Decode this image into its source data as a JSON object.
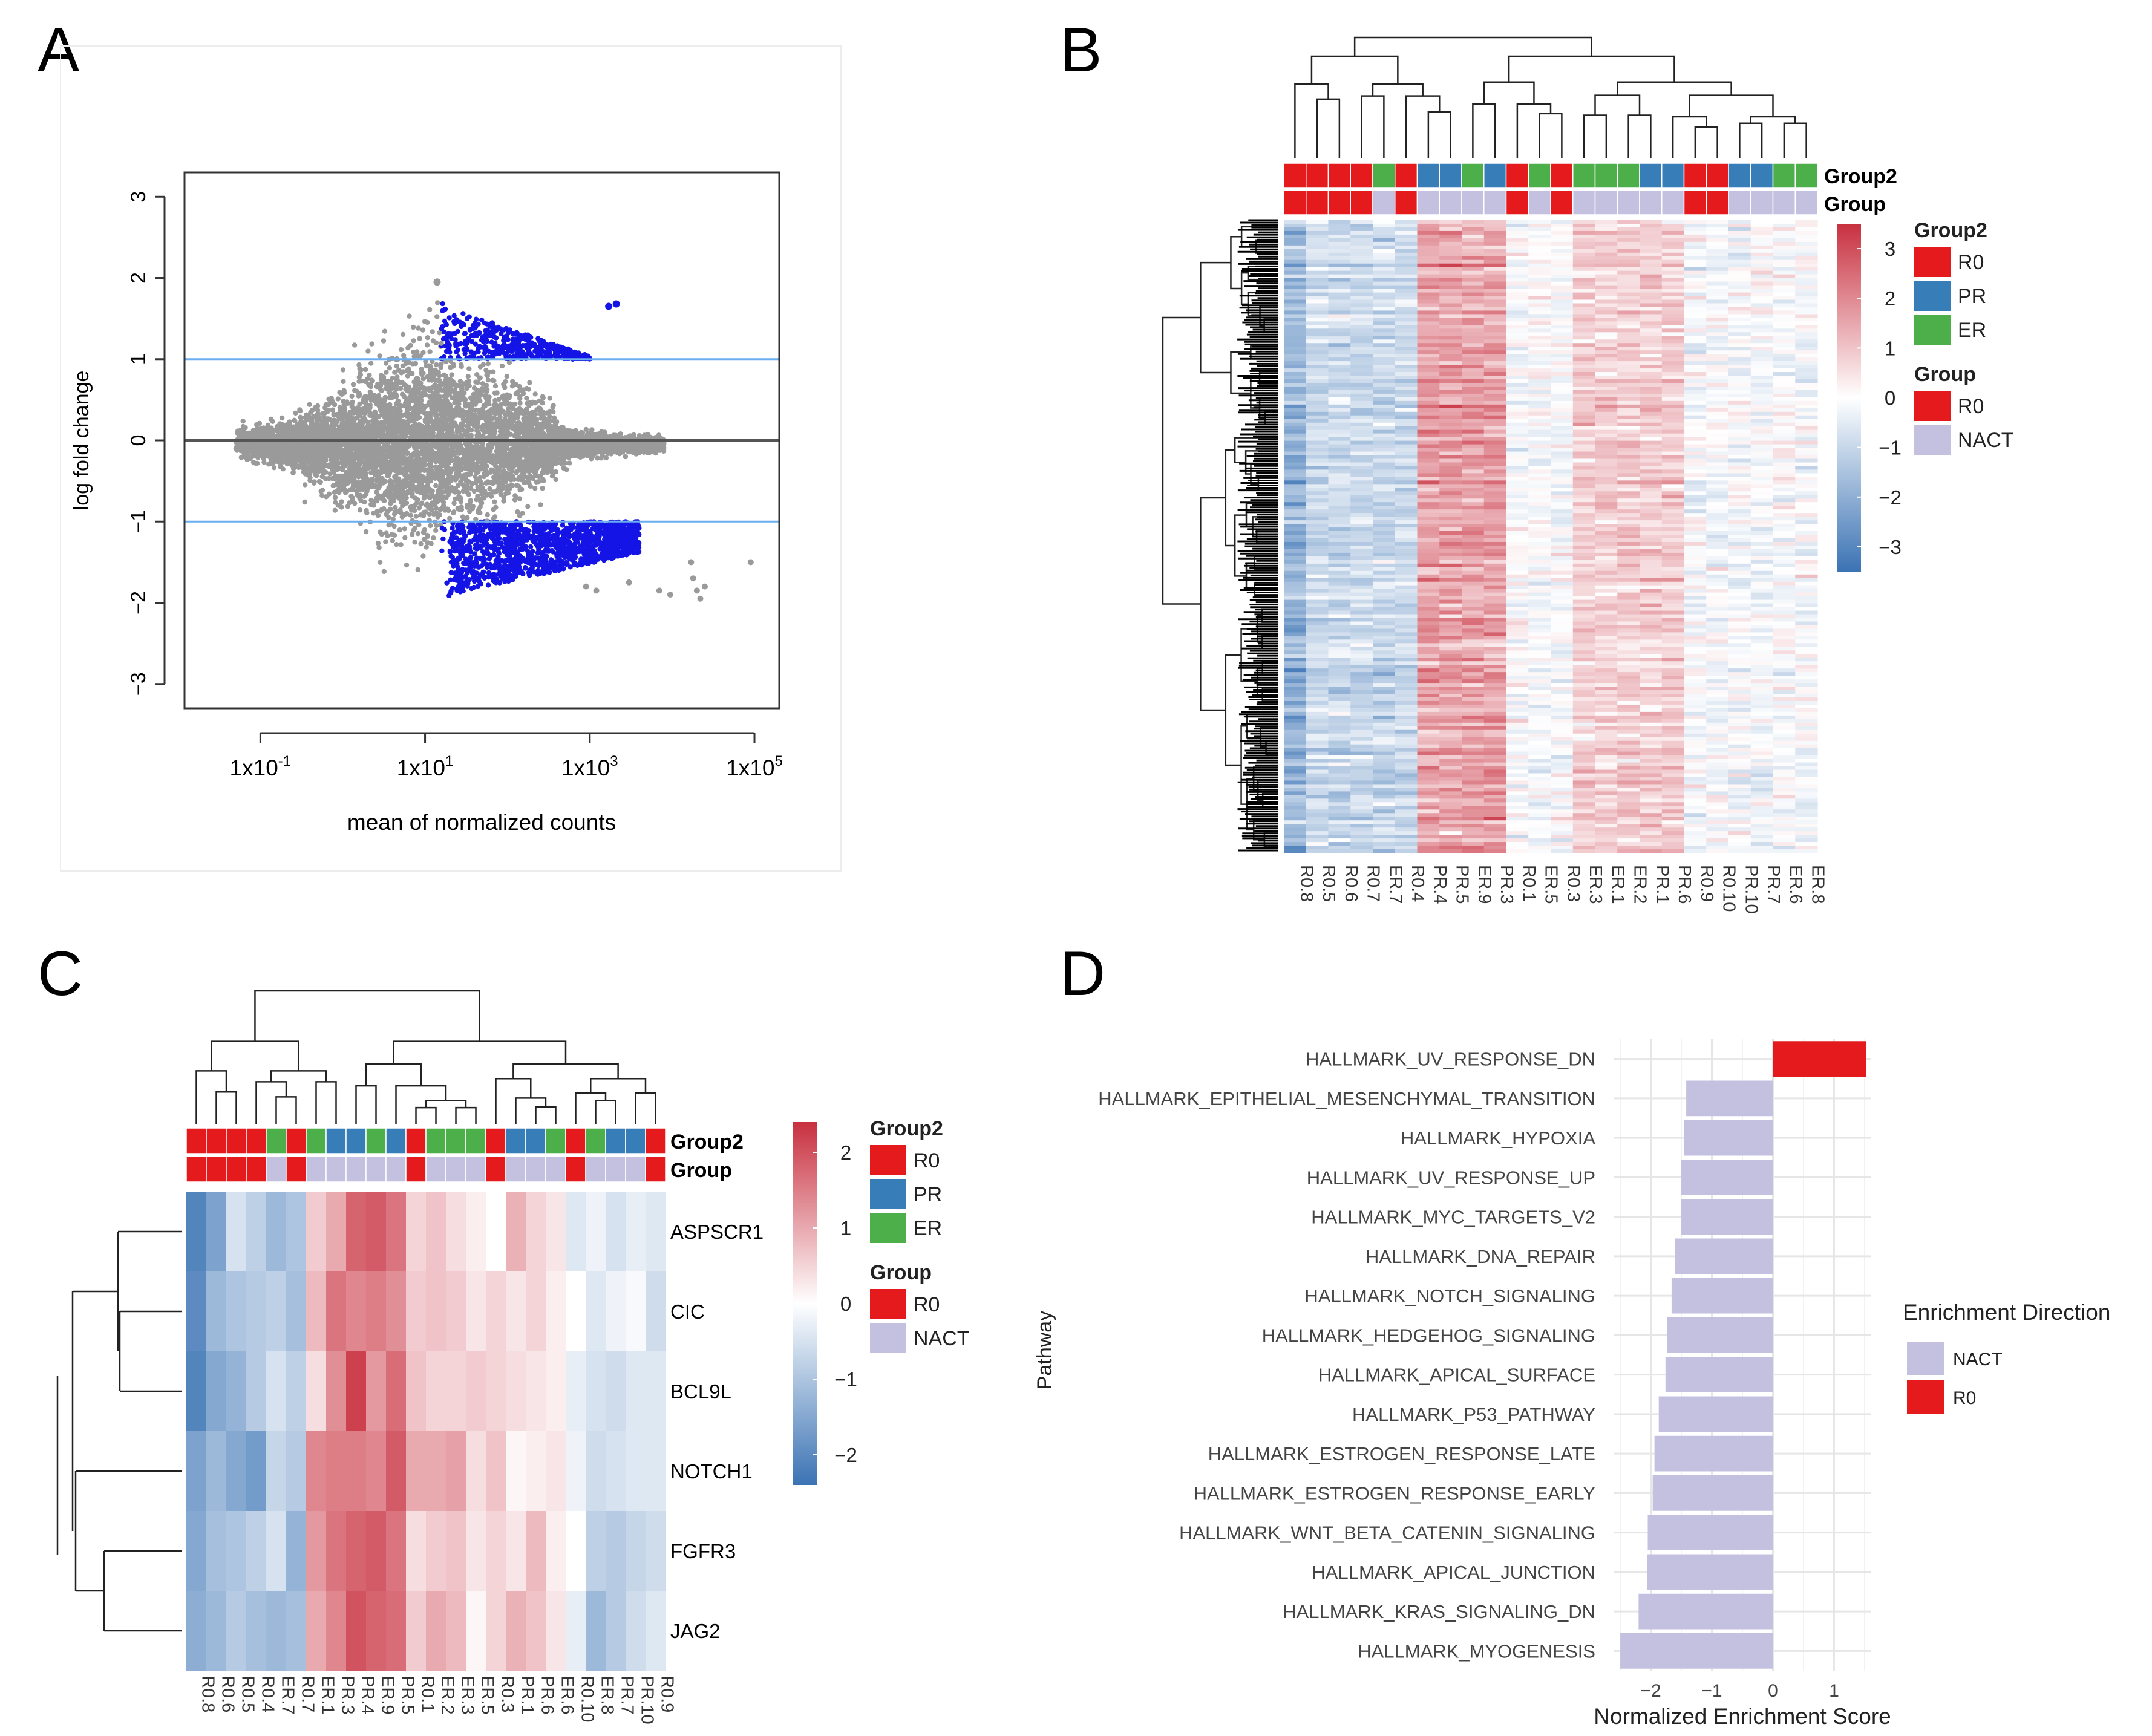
{
  "chart_data": [
    {
      "panel": "A",
      "type": "scatter",
      "subtype": "MA plot",
      "xlabel": "mean of normalized counts",
      "ylabel": "log fold change",
      "xscale": "log10",
      "xlim": [
        0.012,
        200000
      ],
      "ylim": [
        -3.3,
        3.3
      ],
      "x_ticks": [
        {
          "value": 0.1,
          "label": "1x10-1",
          "base": "1x10",
          "exp": "-1"
        },
        {
          "value": 10,
          "label": "1x101",
          "base": "1x10",
          "exp": "1"
        },
        {
          "value": 1000,
          "label": "1x103",
          "base": "1x10",
          "exp": "3"
        },
        {
          "value": 100000,
          "label": "1x105",
          "base": "1x10",
          "exp": "5"
        }
      ],
      "y_ticks": [
        -3,
        -2,
        -1,
        0,
        1,
        2,
        3
      ],
      "hlines": [
        {
          "y": 1,
          "color": "#6aaef0"
        },
        {
          "y": -1,
          "color": "#6aaef0"
        },
        {
          "y": 0,
          "color": "#555555"
        }
      ],
      "colors": {
        "non_significant": "#9a9a9a",
        "significant": "#1414e6"
      },
      "highlighted_points": [
        {
          "x": 1700,
          "y": 1.65
        },
        {
          "x": 2100,
          "y": 1.68
        },
        {
          "x": 14,
          "y": 1.95
        }
      ],
      "outlier_points": [
        {
          "x": 7000,
          "y": -1.85
        },
        {
          "x": 9500,
          "y": -1.9
        },
        {
          "x": 18000,
          "y": -1.7
        },
        {
          "x": 20000,
          "y": -1.85
        },
        {
          "x": 22000,
          "y": -1.95
        },
        {
          "x": 25000,
          "y": -1.8
        },
        {
          "x": 17000,
          "y": -1.5
        },
        {
          "x": 90000,
          "y": -1.5
        },
        {
          "x": 3000,
          "y": -1.75
        },
        {
          "x": 1200,
          "y": -1.85
        },
        {
          "x": 900,
          "y": -1.8
        }
      ]
    },
    {
      "panel": "B",
      "type": "heatmap",
      "columns": [
        "R0.8",
        "R0.5",
        "R0.6",
        "R0.7",
        "ER.7",
        "R0.4",
        "PR.4",
        "PR.5",
        "ER.9",
        "PR.3",
        "R0.1",
        "ER.5",
        "R0.3",
        "ER.3",
        "ER.1",
        "ER.2",
        "PR.1",
        "PR.6",
        "R0.9",
        "R0.10",
        "PR.10",
        "PR.7",
        "ER.6",
        "ER.8"
      ],
      "annotation_rows": [
        "Group2",
        "Group"
      ],
      "legend": {
        "scale_ticks": [
          3,
          2,
          1,
          0,
          -1,
          -2,
          -3
        ],
        "groups": [
          {
            "title": "Group2",
            "entries": [
              {
                "label": "R0",
                "color": "#e41a1c"
              },
              {
                "label": "PR",
                "color": "#377eb8"
              },
              {
                "label": "ER",
                "color": "#4daf4a"
              }
            ]
          },
          {
            "title": "Group",
            "entries": [
              {
                "label": "R0",
                "color": "#e41a1c"
              },
              {
                "label": "NACT",
                "color": "#c4c0e0"
              }
            ]
          }
        ]
      },
      "scale": {
        "min": -3.5,
        "max": 3.5,
        "low": "#3b73b4",
        "mid": "#ffffff",
        "high": "#c8303f"
      }
    },
    {
      "panel": "C",
      "type": "heatmap",
      "columns": [
        "R0.8",
        "R0.6",
        "R0.5",
        "R0.4",
        "ER.7",
        "R0.7",
        "ER.1",
        "PR.3",
        "PR.4",
        "ER.9",
        "PR.5",
        "R0.1",
        "ER.2",
        "ER.3",
        "ER.5",
        "R0.3",
        "PR.1",
        "PR.6",
        "ER.6",
        "R0.10",
        "ER.8",
        "PR.7",
        "PR.10",
        "R0.9"
      ],
      "rows": [
        "ASPSCR1",
        "CIC",
        "BCL9L",
        "NOTCH1",
        "FGFR3",
        "JAG2"
      ],
      "annotation_rows": [
        "Group2",
        "Group"
      ],
      "legend": {
        "scale_ticks": [
          2,
          1,
          0,
          -1,
          -2
        ],
        "groups": [
          {
            "title": "Group2",
            "entries": [
              {
                "label": "R0",
                "color": "#e41a1c"
              },
              {
                "label": "PR",
                "color": "#377eb8"
              },
              {
                "label": "ER",
                "color": "#4daf4a"
              }
            ]
          },
          {
            "title": "Group",
            "entries": [
              {
                "label": "R0",
                "color": "#e41a1c"
              },
              {
                "label": "NACT",
                "color": "#c4c0e0"
              }
            ]
          }
        ]
      },
      "scale": {
        "min": -2.4,
        "max": 2.4,
        "low": "#3b73b4",
        "mid": "#ffffff",
        "high": "#c8303f"
      },
      "values": [
        [
          -2.1,
          -1.6,
          -0.5,
          -0.8,
          -1.2,
          -1.0,
          0.6,
          1.0,
          1.8,
          1.9,
          1.6,
          0.5,
          0.7,
          0.4,
          0.2,
          0.0,
          0.9,
          0.5,
          0.3,
          -0.4,
          -0.2,
          -0.5,
          -0.3,
          -0.4
        ],
        [
          -2.0,
          -1.2,
          -1.0,
          -0.9,
          -0.8,
          -1.1,
          0.8,
          1.6,
          1.4,
          1.5,
          1.3,
          0.6,
          0.7,
          0.6,
          0.3,
          0.5,
          0.3,
          0.5,
          0.2,
          0.0,
          -0.4,
          -0.2,
          -0.1,
          -0.6
        ],
        [
          -2.1,
          -1.5,
          -1.3,
          -0.9,
          -0.5,
          -0.8,
          0.4,
          1.3,
          2.2,
          1.2,
          1.7,
          0.7,
          0.5,
          0.5,
          0.6,
          0.5,
          0.4,
          0.3,
          0.2,
          -0.3,
          -0.5,
          -0.6,
          -0.4,
          -0.4
        ],
        [
          -1.6,
          -1.2,
          -1.5,
          -1.7,
          -0.7,
          -0.9,
          1.4,
          1.5,
          1.5,
          1.4,
          1.9,
          1.0,
          1.0,
          1.1,
          0.4,
          0.7,
          0.1,
          0.2,
          0.3,
          -0.2,
          -0.6,
          -0.5,
          -0.4,
          -0.4
        ],
        [
          -1.5,
          -1.1,
          -1.0,
          -0.8,
          -0.5,
          -1.3,
          1.2,
          1.6,
          1.8,
          1.9,
          1.6,
          0.4,
          0.6,
          0.7,
          0.3,
          0.5,
          0.3,
          0.8,
          0.2,
          0.0,
          -0.8,
          -0.9,
          -0.7,
          -0.6
        ],
        [
          -1.4,
          -1.2,
          -0.9,
          -1.1,
          -1.2,
          -1.1,
          1.0,
          1.4,
          2.0,
          1.8,
          1.7,
          0.6,
          1.0,
          0.8,
          0.1,
          0.5,
          0.9,
          0.7,
          0.3,
          -0.3,
          -1.2,
          -0.9,
          -0.6,
          -0.4
        ]
      ]
    },
    {
      "panel": "D",
      "type": "bar",
      "orientation": "horizontal",
      "xlabel": "Normalized Enrichment Score",
      "ylabel": "Pathway",
      "xlim": [
        -2.6,
        1.6
      ],
      "x_ticks": [
        -2,
        -1,
        0,
        1
      ],
      "legend_title": "Enrichment Direction",
      "legend": [
        {
          "label": "NACT",
          "color": "#c4c0e0"
        },
        {
          "label": "R0",
          "color": "#e41a1c"
        }
      ],
      "categories": [
        "HALLMARK_UV_RESPONSE_DN",
        "HALLMARK_EPITHELIAL_MESENCHYMAL_TRANSITION",
        "HALLMARK_HYPOXIA",
        "HALLMARK_UV_RESPONSE_UP",
        "HALLMARK_MYC_TARGETS_V2",
        "HALLMARK_DNA_REPAIR",
        "HALLMARK_NOTCH_SIGNALING",
        "HALLMARK_HEDGEHOG_SIGNALING",
        "HALLMARK_APICAL_SURFACE",
        "HALLMARK_P53_PATHWAY",
        "HALLMARK_ESTROGEN_RESPONSE_LATE",
        "HALLMARK_ESTROGEN_RESPONSE_EARLY",
        "HALLMARK_WNT_BETA_CATENIN_SIGNALING",
        "HALLMARK_APICAL_JUNCTION",
        "HALLMARK_KRAS_SIGNALING_DN",
        "HALLMARK_MYOGENESIS"
      ],
      "values": [
        1.53,
        -1.42,
        -1.46,
        -1.5,
        -1.5,
        -1.6,
        -1.66,
        -1.73,
        -1.76,
        -1.87,
        -1.94,
        -1.97,
        -2.05,
        -2.06,
        -2.2,
        -2.5
      ],
      "directions": [
        "R0",
        "NACT",
        "NACT",
        "NACT",
        "NACT",
        "NACT",
        "NACT",
        "NACT",
        "NACT",
        "NACT",
        "NACT",
        "NACT",
        "NACT",
        "NACT",
        "NACT",
        "NACT"
      ]
    }
  ]
}
